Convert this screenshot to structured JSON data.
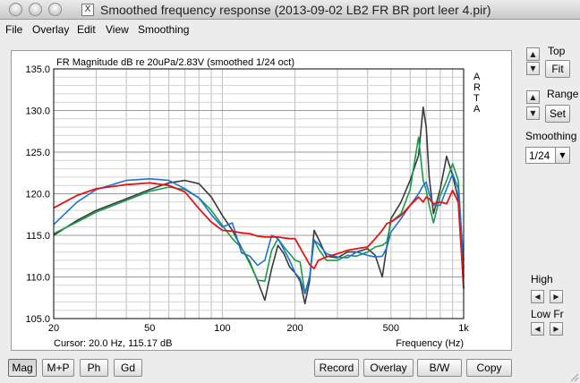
{
  "window": {
    "title": "Smoothed frequency response (2013-09-02 LB2 FR BR port leer 4.pir)",
    "app_glyph": "X"
  },
  "menu": [
    "File",
    "Overlay",
    "Edit",
    "View",
    "Smoothing"
  ],
  "side": {
    "top_label": "Top",
    "fit_label": "Fit",
    "range_label": "Range",
    "set_label": "Set",
    "smoothing_label": "Smoothing",
    "smoothing_value": "1/24",
    "high_label": "High",
    "lowfr_label": "Low Fr"
  },
  "bottom_buttons": {
    "mag": "Mag",
    "mp": "M+P",
    "ph": "Ph",
    "gd": "Gd",
    "record": "Record",
    "overlay": "Overlay",
    "bw": "B/W",
    "copy": "Copy"
  },
  "chart_data": {
    "type": "line",
    "title": "FR Magnitude dB re 20uPa/2.83V (smoothed 1/24 oct)",
    "watermark": "ARTA",
    "cursor_text": "Cursor: 20.0 Hz, 115.17 dB",
    "xlabel": "Frequency (Hz)",
    "x_scale": "log",
    "xlim": [
      20,
      1000
    ],
    "ylim": [
      105,
      135
    ],
    "y_ticks": [
      "105.0",
      "110.0",
      "115.0",
      "120.0",
      "125.0",
      "130.0",
      "135.0"
    ],
    "y_tick_values": [
      105,
      110,
      115,
      120,
      125,
      130,
      135
    ],
    "x_ticks": [
      "20",
      "50",
      "100",
      "200",
      "500",
      "1k"
    ],
    "x_tick_values": [
      20,
      50,
      100,
      200,
      500,
      1000
    ],
    "grid": true,
    "series": [
      {
        "color": "#3a3a3a",
        "x": [
          20,
          25,
          30,
          40,
          50,
          60,
          70,
          80,
          90,
          100,
          110,
          120,
          130,
          140,
          150,
          160,
          170,
          180,
          190,
          200,
          210,
          220,
          230,
          240,
          250,
          270,
          300,
          330,
          360,
          400,
          430,
          460,
          480,
          500,
          550,
          600,
          650,
          680,
          700,
          720,
          750,
          800,
          850,
          900,
          950,
          1000
        ],
        "y": [
          115,
          116.8,
          118,
          119.4,
          120.5,
          121.3,
          121.6,
          121.2,
          119.6,
          117.4,
          115.6,
          113.5,
          111.8,
          109.5,
          107.2,
          111,
          113.8,
          112.8,
          111.2,
          110.5,
          109.5,
          106.8,
          109.5,
          115.6,
          114.6,
          112.5,
          112.3,
          113,
          113,
          113.4,
          112.6,
          110,
          113.6,
          117,
          119,
          121.6,
          124.6,
          130.4,
          128,
          122,
          117.6,
          120.6,
          124.5,
          122.2,
          119.4,
          110
        ]
      },
      {
        "color": "#1b9a4c",
        "x": [
          20,
          25,
          30,
          40,
          50,
          60,
          70,
          80,
          90,
          100,
          110,
          120,
          130,
          140,
          150,
          160,
          170,
          180,
          190,
          200,
          210,
          220,
          230,
          240,
          250,
          270,
          300,
          330,
          360,
          400,
          430,
          460,
          480,
          500,
          550,
          600,
          650,
          680,
          700,
          720,
          750,
          800,
          850,
          900,
          950,
          1000
        ],
        "y": [
          115.2,
          116.6,
          117.8,
          119.2,
          120.3,
          120.8,
          120.5,
          119.5,
          118,
          116.2,
          114.6,
          113.5,
          111.6,
          109.6,
          109.5,
          113.2,
          114.6,
          113.6,
          112.8,
          112,
          111.8,
          108,
          110,
          114.5,
          113.4,
          112,
          112,
          112.6,
          112.5,
          113,
          113.6,
          113.8,
          114.2,
          116.6,
          117.6,
          120.5,
          126.8,
          121.6,
          120.4,
          118.6,
          116.5,
          119.8,
          121.6,
          123.6,
          121.6,
          111
        ]
      },
      {
        "color": "#1e73d8",
        "x": [
          20,
          25,
          30,
          40,
          50,
          60,
          70,
          80,
          90,
          100,
          110,
          120,
          130,
          140,
          150,
          160,
          170,
          180,
          190,
          200,
          210,
          220,
          230,
          240,
          250,
          270,
          300,
          330,
          360,
          400,
          430,
          460,
          480,
          500,
          550,
          600,
          650,
          680,
          700,
          720,
          750,
          800,
          850,
          900,
          950,
          1000
        ],
        "y": [
          116.3,
          119,
          120.5,
          121.6,
          121.8,
          121.6,
          120.6,
          119.5,
          117.5,
          116,
          116.5,
          112.9,
          112.5,
          111.4,
          112,
          115,
          114.6,
          113.3,
          112,
          110.5,
          109.8,
          108,
          110,
          114.4,
          114,
          112.8,
          112.4,
          112.3,
          113,
          112.6,
          112.4,
          112.5,
          113.5,
          115.4,
          117,
          118.6,
          120,
          121,
          121.4,
          120,
          118.6,
          118.6,
          120.6,
          122.4,
          120.6,
          112
        ]
      },
      {
        "color": "#e01515",
        "x": [
          20,
          25,
          30,
          40,
          50,
          60,
          70,
          80,
          90,
          100,
          110,
          120,
          130,
          140,
          150,
          160,
          170,
          180,
          190,
          200,
          210,
          220,
          230,
          240,
          250,
          270,
          300,
          330,
          360,
          400,
          430,
          460,
          480,
          500,
          550,
          600,
          650,
          680,
          700,
          720,
          750,
          800,
          850,
          900,
          950,
          1000
        ],
        "y": [
          118.3,
          119.8,
          120.6,
          121.1,
          121.3,
          121,
          120.2,
          118.2,
          116.6,
          115.6,
          115.5,
          115.3,
          115.2,
          114.9,
          114.8,
          114.8,
          114.8,
          114.7,
          114.6,
          114.6,
          113.5,
          112.5,
          111.5,
          111,
          112,
          112.4,
          112.8,
          113.2,
          113.4,
          113.6,
          114.6,
          115.6,
          116.4,
          116.6,
          117.4,
          118.6,
          119.6,
          119,
          119.6,
          119.4,
          118.8,
          119,
          118.8,
          120.4,
          119,
          108.6
        ]
      }
    ]
  }
}
